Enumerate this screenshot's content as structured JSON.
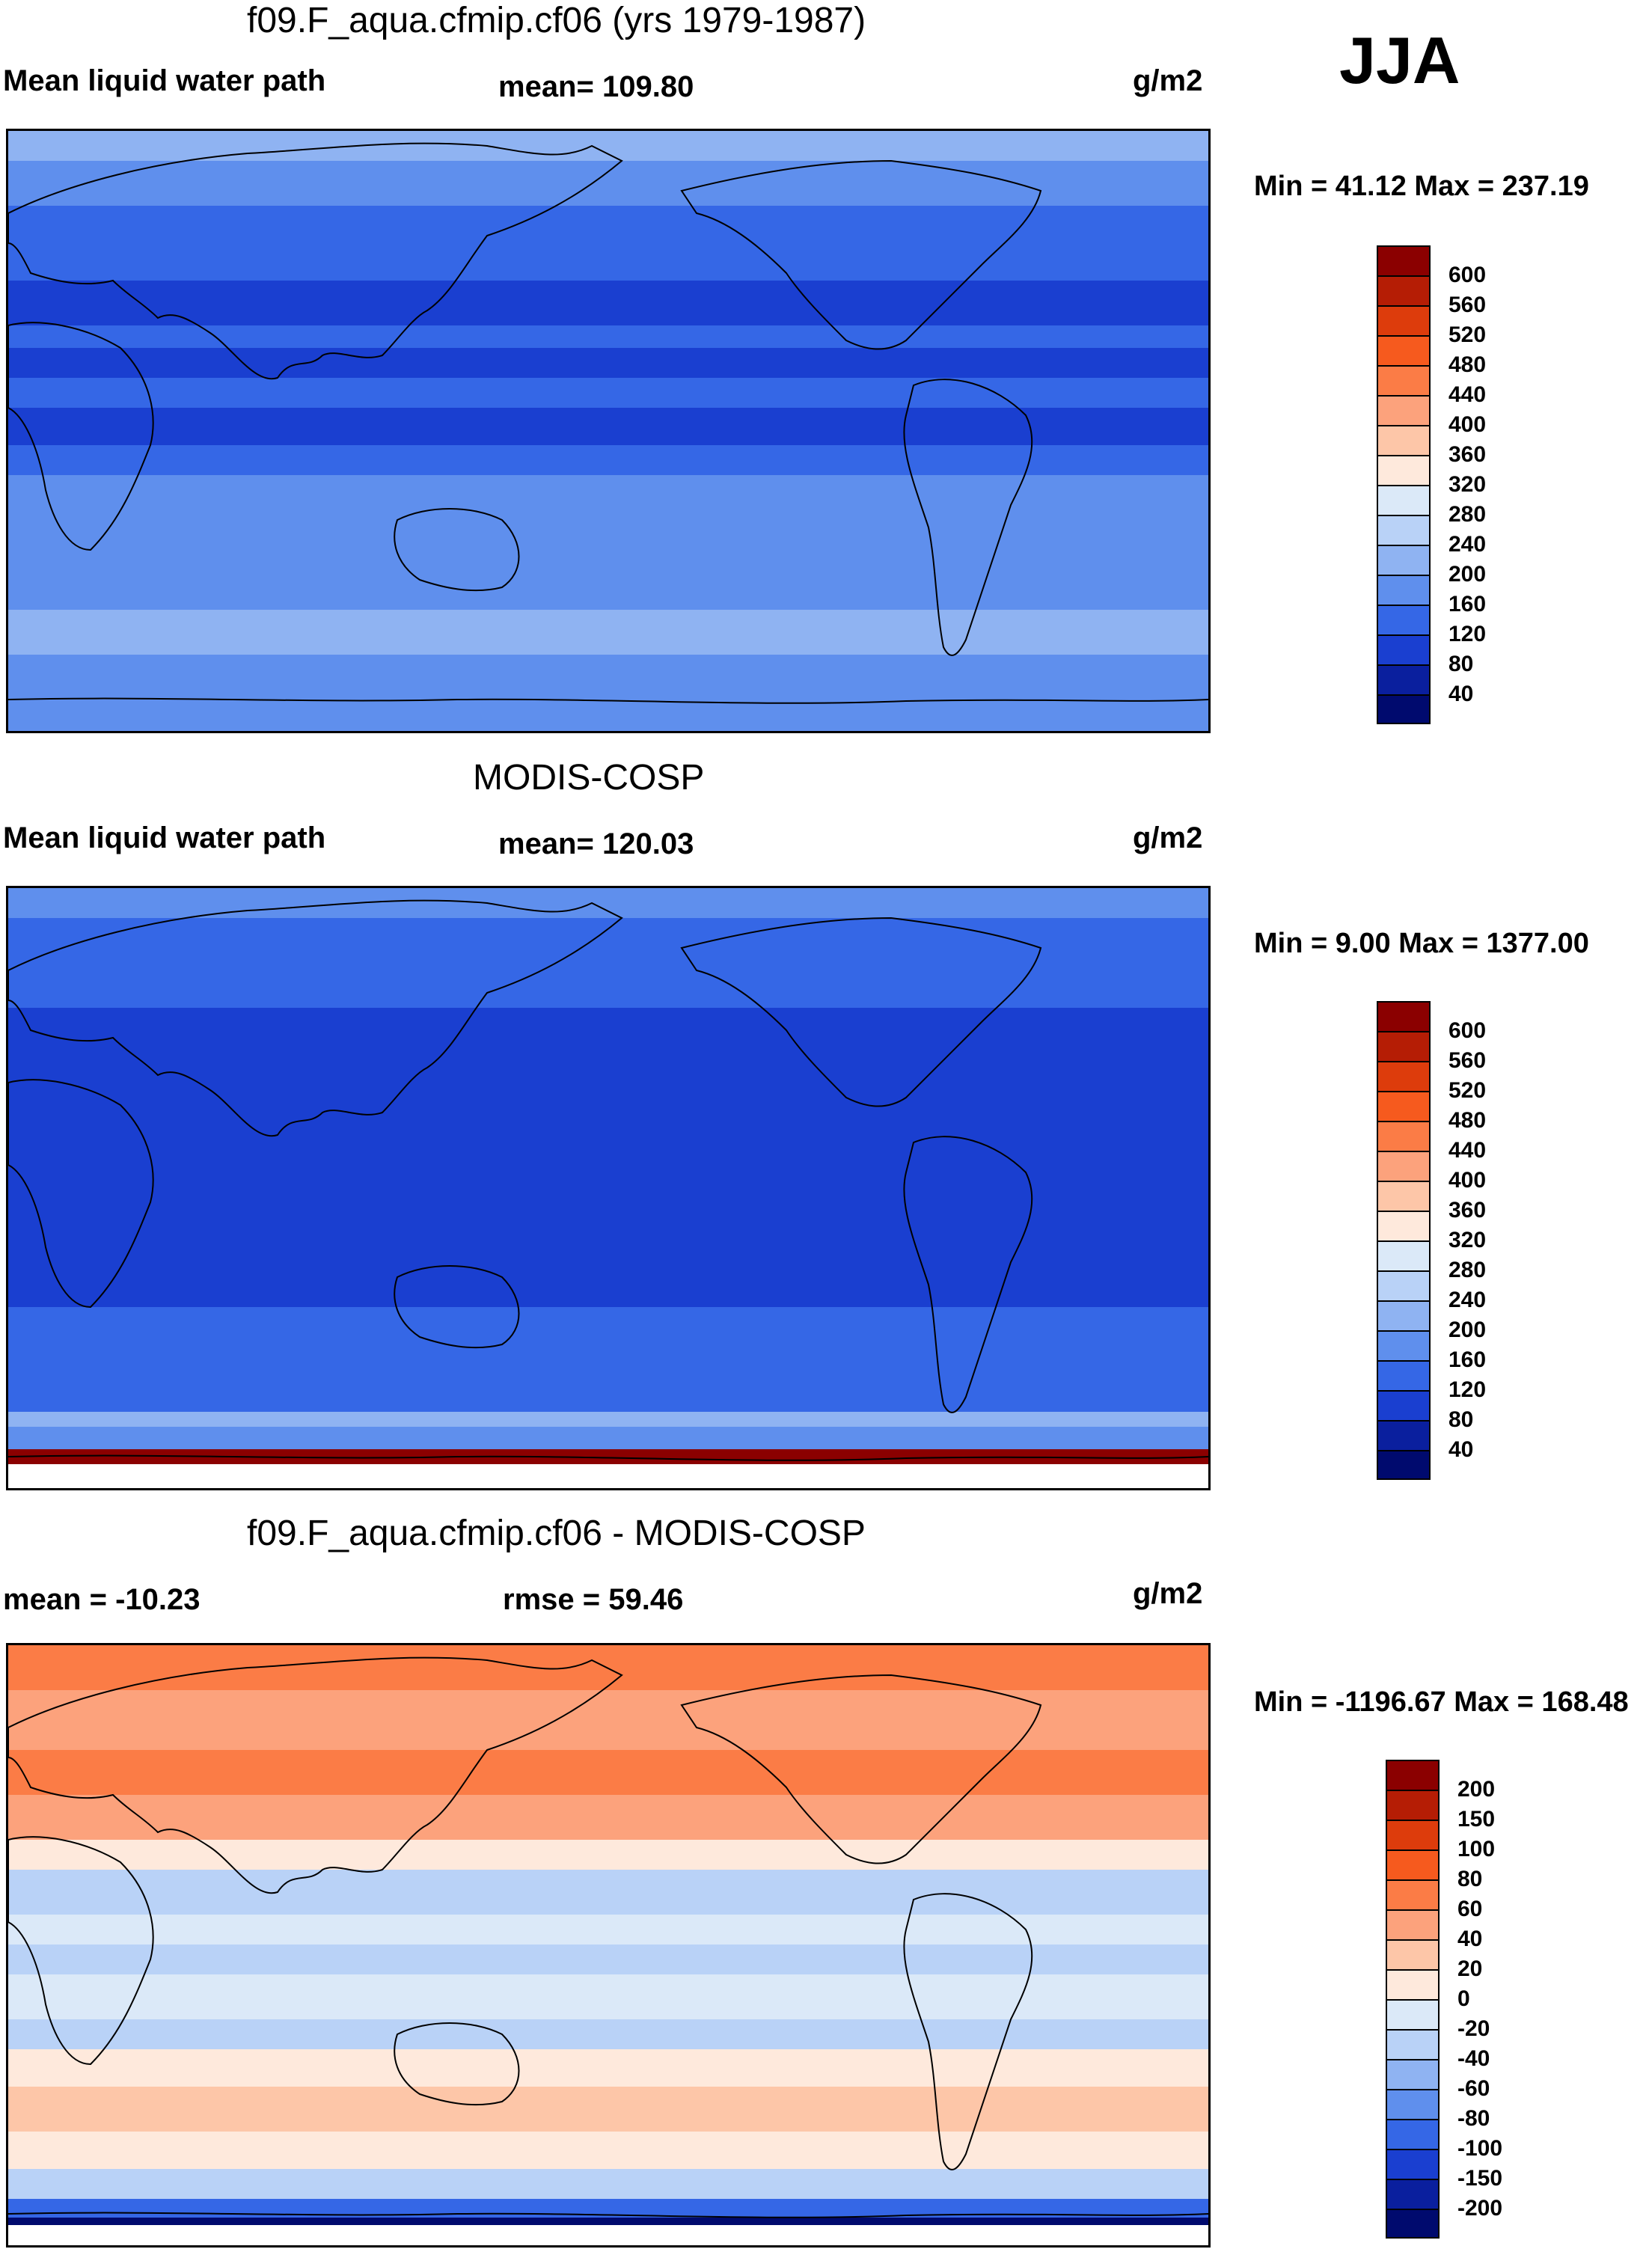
{
  "season": "JJA",
  "panels": [
    {
      "title": "f09.F_aqua.cfmip.cf06 (yrs 1979-1987)",
      "left_label": "Mean liquid water path",
      "center_label": "mean= 109.80",
      "units": "g/m2",
      "minmax": "Min =  41.12 Max = 237.19",
      "colorbar": {
        "labels": [
          "600",
          "560",
          "520",
          "480",
          "440",
          "400",
          "360",
          "320",
          "280",
          "240",
          "200",
          "160",
          "120",
          "80",
          "40"
        ],
        "colors": [
          "#8b0000",
          "#b51d05",
          "#dd3c0c",
          "#f65a1e",
          "#fb7c46",
          "#fca27c",
          "#fdc6a8",
          "#fee9dc",
          "#dbe9f8",
          "#b9d2f7",
          "#8fb3f2",
          "#5f8fed",
          "#3567e6",
          "#1a3fd0",
          "#0a1f9e",
          "#000a6e"
        ],
        "field": "model"
      }
    },
    {
      "title": "MODIS-COSP",
      "left_label": "Mean liquid water path",
      "center_label": "mean= 120.03",
      "units": "g/m2",
      "minmax": "Min =   9.00 Max = 1377.00",
      "colorbar": {
        "labels": [
          "600",
          "560",
          "520",
          "480",
          "440",
          "400",
          "360",
          "320",
          "280",
          "240",
          "200",
          "160",
          "120",
          "80",
          "40"
        ],
        "colors": [
          "#8b0000",
          "#b51d05",
          "#dd3c0c",
          "#f65a1e",
          "#fb7c46",
          "#fca27c",
          "#fdc6a8",
          "#fee9dc",
          "#dbe9f8",
          "#b9d2f7",
          "#8fb3f2",
          "#5f8fed",
          "#3567e6",
          "#1a3fd0",
          "#0a1f9e",
          "#000a6e"
        ],
        "field": "obs"
      }
    },
    {
      "title": "f09.F_aqua.cfmip.cf06 - MODIS-COSP",
      "left_label": "mean = -10.23",
      "center_label": "rmse =  59.46",
      "units": "g/m2",
      "minmax": "Min = -1196.67 Max = 168.48",
      "colorbar": {
        "labels": [
          "200",
          "150",
          "100",
          "80",
          "60",
          "40",
          "20",
          "0",
          "-20",
          "-40",
          "-60",
          "-80",
          "-100",
          "-150",
          "-200"
        ],
        "colors": [
          "#8b0000",
          "#b51d05",
          "#dd3c0c",
          "#f65a1e",
          "#fb7c46",
          "#fca27c",
          "#fdc6a8",
          "#fee9dc",
          "#dbe9f8",
          "#b9d2f7",
          "#8fb3f2",
          "#5f8fed",
          "#3567e6",
          "#1a3fd0",
          "#0a1f9e",
          "#000a6e"
        ],
        "field": "diff"
      }
    }
  ]
}
